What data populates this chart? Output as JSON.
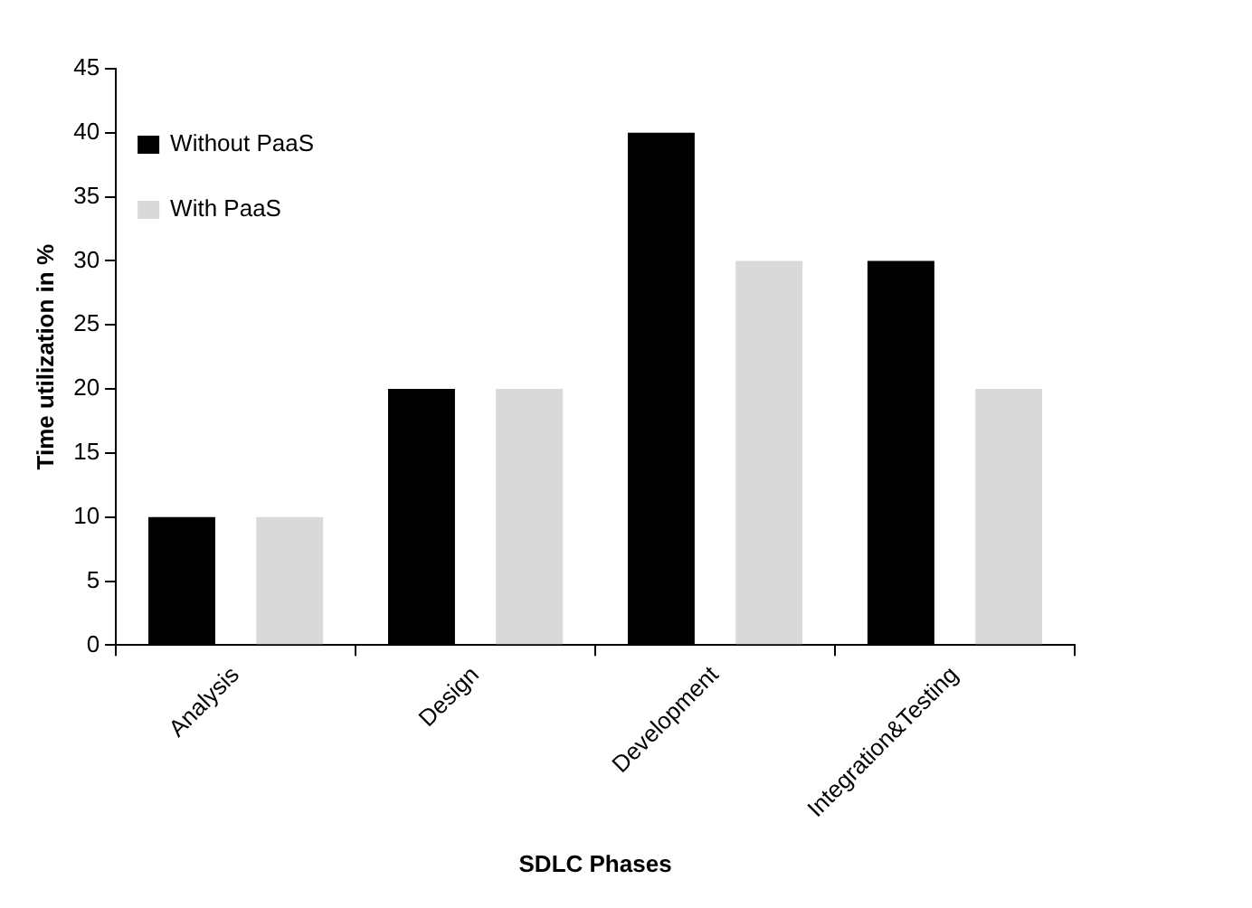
{
  "chart_data": {
    "type": "bar",
    "xlabel": "SDLC Phases",
    "ylabel": "Time utilization in %",
    "categories": [
      "Analysis",
      "Design",
      "Development",
      "Integration&Testing"
    ],
    "series": [
      {
        "name": "Without PaaS",
        "color": "#000000",
        "values": [
          10,
          20,
          40,
          30
        ]
      },
      {
        "name": "With PaaS",
        "color": "#d9d9d9",
        "values": [
          10,
          20,
          30,
          20
        ]
      }
    ],
    "ylim": [
      0,
      45
    ],
    "yticks": [
      0,
      5,
      10,
      15,
      20,
      25,
      30,
      35,
      40,
      45
    ],
    "grid": false,
    "legend": "top left"
  }
}
